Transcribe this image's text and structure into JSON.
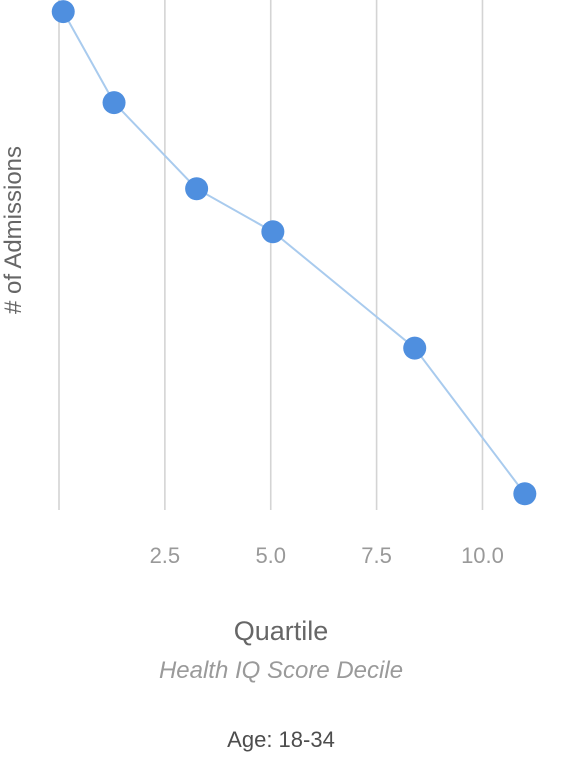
{
  "chart_data": {
    "type": "line",
    "xlabel": "Quartile",
    "subtitle": "Health IQ Score Decile",
    "ylabel": "# of Admissions",
    "caption": "Age: 18-34",
    "xlim": [
      0,
      11.5
    ],
    "ylim": [
      0,
      100
    ],
    "x_ticks": [
      2.5,
      5.0,
      7.5,
      10.0
    ],
    "x_tick_labels": [
      "2.5",
      "5.0",
      "7.5",
      "10.0"
    ],
    "grid": "vertical",
    "series": [
      {
        "color": "#4f8fdf",
        "line_color": "#a9cbee",
        "points": [
          {
            "x": 0.1,
            "y": 98.5
          },
          {
            "x": 1.3,
            "y": 80.5
          },
          {
            "x": 3.25,
            "y": 63.5
          },
          {
            "x": 5.05,
            "y": 55.0
          },
          {
            "x": 8.4,
            "y": 32.0
          },
          {
            "x": 11.0,
            "y": 3.2
          }
        ]
      }
    ]
  }
}
